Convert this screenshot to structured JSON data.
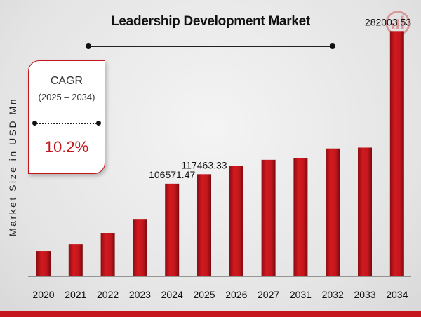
{
  "colors": {
    "bar": "#c4161c",
    "bar_dark": "#7a0a0e",
    "accent": "#c4161c"
  },
  "logo": {
    "icon": "market-research-logo-icon"
  },
  "cagr": {
    "label": "CAGR",
    "range": "(2025 – 2034)",
    "value": "10.2%"
  },
  "chart_data": {
    "type": "bar",
    "title": "Leadership Development Market",
    "xlabel": "",
    "ylabel": "Market Size in USD Mn",
    "categories": [
      "2020",
      "2021",
      "2022",
      "2023",
      "2024",
      "2025",
      "2026",
      "2027",
      "2031",
      "2032",
      "2033",
      "2034"
    ],
    "values": [
      29000,
      37000,
      50000,
      66000,
      106571.47,
      117463.33,
      127000,
      134000,
      136000,
      147000,
      148000,
      282003.53
    ],
    "data_labels": [
      "",
      "",
      "",
      "",
      "106571.47",
      "117463.33",
      "",
      "",
      "",
      "",
      "",
      "282003.53"
    ],
    "ylim": [
      0,
      300000
    ],
    "grid": false,
    "legend": "none"
  }
}
